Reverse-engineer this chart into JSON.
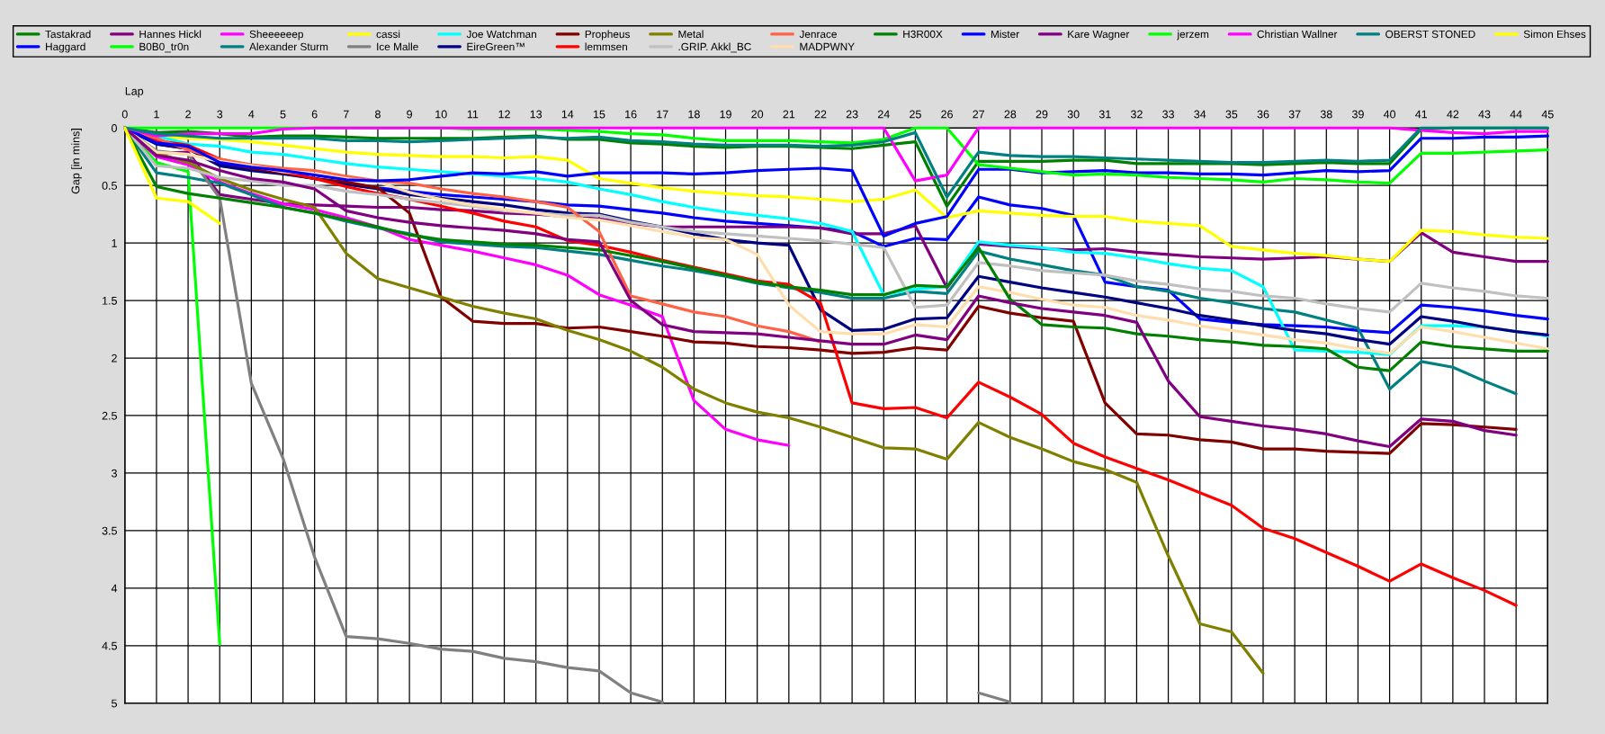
{
  "chart_data": {
    "type": "line",
    "xlabel": "Lap",
    "ylabel": "Gap [in mins]",
    "x": [
      0,
      1,
      2,
      3,
      4,
      5,
      6,
      7,
      8,
      9,
      10,
      11,
      12,
      13,
      14,
      15,
      16,
      17,
      18,
      19,
      20,
      21,
      22,
      23,
      24,
      25,
      26,
      27,
      28,
      29,
      30,
      31,
      32,
      33,
      34,
      35,
      36,
      37,
      38,
      39,
      40,
      41,
      42,
      43,
      44,
      45
    ],
    "xlim": [
      0,
      45
    ],
    "xticks": [
      0,
      1,
      2,
      3,
      4,
      5,
      6,
      7,
      8,
      9,
      10,
      11,
      12,
      13,
      14,
      15,
      16,
      17,
      18,
      19,
      20,
      21,
      22,
      23,
      24,
      25,
      26,
      27,
      28,
      29,
      30,
      31,
      32,
      33,
      34,
      35,
      36,
      37,
      38,
      39,
      40,
      41,
      42,
      43,
      44,
      45
    ],
    "ylim": [
      5,
      0
    ],
    "yticks": [
      0,
      0.5,
      1,
      1.5,
      2,
      2.5,
      3,
      3.5,
      4,
      4.5,
      5
    ],
    "grid": true,
    "legend": "top",
    "line_style": "solid",
    "series": [
      {
        "name": "Tastakrad",
        "color": "#008000",
        "values": [
          0,
          0.04,
          0.03,
          0.05,
          0.08,
          0.07,
          0.07,
          0.08,
          0.09,
          0.09,
          0.09,
          0.09,
          0.08,
          0.07,
          0.1,
          0.1,
          0.13,
          0.14,
          0.16,
          0.17,
          0.16,
          0.16,
          0.17,
          0.18,
          0.15,
          0.12,
          0.68,
          0.29,
          0.29,
          0.29,
          0.28,
          0.28,
          0.31,
          0.31,
          0.31,
          0.31,
          0.32,
          0.31,
          0.3,
          0.31,
          0.31,
          0.01,
          0,
          0,
          0,
          0
        ]
      },
      {
        "name": "Haggard",
        "color": "#0000ff",
        "values": [
          0,
          0.14,
          0.18,
          0.32,
          0.35,
          0.39,
          0.44,
          0.48,
          0.52,
          0.55,
          0.58,
          0.6,
          0.62,
          0.64,
          0.67,
          0.68,
          0.71,
          0.74,
          0.78,
          0.81,
          0.83,
          0.85,
          0.87,
          0.9,
          1.03,
          0.96,
          0.97,
          0.6,
          0.67,
          0.7,
          0.76,
          1.34,
          1.38,
          1.41,
          1.66,
          1.69,
          1.71,
          1.72,
          1.73,
          1.76,
          1.78,
          1.54,
          1.56,
          1.59,
          1.63,
          1.66
        ]
      },
      {
        "name": "Hannes Hickl",
        "color": "#800080",
        "values": [
          0,
          0.22,
          0.21,
          0.58,
          0.62,
          0.66,
          0.67,
          0.68,
          0.69,
          0.69,
          0.71,
          0.72,
          0.74,
          0.75,
          0.77,
          0.79,
          0.83,
          0.86,
          0.86,
          0.86,
          0.86,
          0.86,
          0.87,
          0.92,
          0.92,
          0.85,
          1.39,
          1.01,
          1.03,
          1.05,
          1.06,
          1.05,
          1.08,
          1.1,
          1.12,
          1.13,
          1.14,
          1.13,
          1.12,
          1.14,
          1.16,
          0.91,
          1.08,
          1.12,
          1.16,
          1.16
        ]
      },
      {
        "name": "B0B0_tr0n",
        "color": "#00ff00",
        "values": [
          0,
          0.3,
          0.38,
          4.49,
          null,
          null,
          null,
          null,
          null,
          null,
          null,
          null,
          null,
          null,
          null,
          null,
          null,
          null,
          null,
          null,
          null,
          null,
          null,
          null,
          null,
          null,
          null,
          null,
          null,
          null,
          null,
          null,
          null,
          null,
          null,
          null,
          null,
          null,
          null,
          null,
          null,
          null,
          null,
          null,
          null,
          null
        ]
      },
      {
        "name": "Sheeeeeep",
        "color": "#ff00ff",
        "values": [
          0,
          0.25,
          0.32,
          0.47,
          0.57,
          0.66,
          0.71,
          0.78,
          0.86,
          0.97,
          1.02,
          1.07,
          1.13,
          1.19,
          1.28,
          1.45,
          1.54,
          1.64,
          2.37,
          2.62,
          2.71,
          2.76,
          null,
          null,
          null,
          null,
          null,
          null,
          null,
          null,
          null,
          null,
          null,
          null,
          null,
          null,
          null,
          null,
          null,
          null,
          null,
          null,
          null,
          null,
          null,
          null
        ]
      },
      {
        "name": "Alexander Sturm",
        "color": "#008080",
        "values": [
          0,
          0.39,
          0.43,
          0.48,
          0.58,
          0.69,
          0.74,
          0.81,
          0.87,
          0.92,
          0.99,
          1.01,
          1.03,
          1.04,
          1.07,
          1.1,
          1.15,
          1.2,
          1.24,
          1.29,
          1.35,
          1.39,
          1.43,
          1.48,
          1.48,
          1.42,
          1.44,
          1.07,
          1.14,
          1.19,
          1.24,
          1.28,
          1.38,
          1.42,
          1.48,
          1.52,
          1.57,
          1.6,
          1.67,
          1.74,
          2.27,
          2.03,
          2.08,
          2.2,
          2.31,
          null
        ]
      },
      {
        "name": "cassi",
        "color": "#ffff00",
        "values": [
          0,
          0.08,
          0.09,
          0.1,
          0.12,
          0.15,
          0.18,
          0.21,
          0.23,
          0.24,
          0.25,
          0.25,
          0.26,
          0.25,
          0.28,
          0.44,
          0.48,
          0.52,
          0.55,
          0.57,
          0.59,
          0.6,
          0.62,
          0.64,
          0.62,
          0.54,
          0.78,
          0.72,
          0.74,
          0.76,
          0.77,
          0.77,
          0.81,
          0.83,
          0.85,
          1.03,
          1.06,
          1.09,
          1.11,
          1.14,
          1.16,
          0.89,
          0.9,
          0.93,
          0.95,
          0.96
        ]
      },
      {
        "name": "Ice Malle",
        "color": "#808080",
        "values": [
          0,
          0.2,
          0.23,
          0.61,
          2.22,
          2.87,
          3.73,
          4.42,
          4.44,
          4.48,
          4.53,
          4.55,
          4.61,
          4.64,
          4.69,
          4.72,
          4.91,
          4.99,
          null,
          null,
          null,
          null,
          null,
          null,
          null,
          null,
          null,
          4.91,
          4.99,
          null,
          null,
          null,
          null,
          null,
          null,
          null,
          null,
          null,
          null,
          null,
          null,
          null,
          null,
          null,
          null,
          null
        ]
      },
      {
        "name": "Joe Watchman",
        "color": "#00ffff",
        "values": [
          0,
          0.07,
          0.14,
          0.16,
          0.21,
          0.23,
          0.27,
          0.31,
          0.34,
          0.36,
          0.38,
          0.4,
          0.42,
          0.44,
          0.47,
          0.53,
          0.58,
          0.64,
          0.69,
          0.73,
          0.76,
          0.79,
          0.83,
          0.9,
          1.45,
          1.4,
          1.38,
          0.99,
          1.02,
          1.04,
          1.08,
          1.09,
          1.13,
          1.18,
          1.22,
          1.24,
          1.38,
          1.93,
          1.94,
          1.95,
          1.97,
          1.72,
          1.72,
          1.73,
          1.77,
          1.81
        ]
      },
      {
        "name": "EireGreen™",
        "color": "#000080",
        "values": [
          0,
          0.14,
          0.18,
          0.33,
          0.37,
          0.4,
          0.44,
          0.49,
          0.53,
          0.58,
          0.61,
          0.64,
          0.67,
          0.71,
          0.74,
          0.75,
          0.81,
          0.86,
          0.92,
          0.97,
          1.0,
          1.02,
          1.58,
          1.76,
          1.75,
          1.66,
          1.65,
          1.29,
          1.34,
          1.39,
          1.43,
          1.47,
          1.52,
          1.57,
          1.63,
          1.67,
          1.72,
          1.76,
          1.79,
          1.84,
          1.88,
          1.64,
          1.68,
          1.73,
          1.77,
          1.8
        ]
      },
      {
        "name": "Propheus",
        "color": "#800000",
        "values": [
          0,
          0.12,
          0.18,
          0.3,
          0.35,
          0.39,
          0.44,
          0.47,
          0.52,
          0.74,
          1.47,
          1.68,
          1.7,
          1.7,
          1.74,
          1.73,
          1.77,
          1.81,
          1.86,
          1.87,
          1.9,
          1.91,
          1.93,
          1.96,
          1.95,
          1.91,
          1.93,
          1.55,
          1.61,
          1.65,
          1.68,
          2.39,
          2.66,
          2.67,
          2.71,
          2.73,
          2.79,
          2.79,
          2.81,
          2.82,
          2.83,
          2.57,
          2.58,
          2.6,
          2.62,
          null
        ]
      },
      {
        "name": "lemmsen",
        "color": "#ff0000",
        "values": [
          0,
          0.11,
          0.15,
          0.27,
          0.33,
          0.38,
          0.44,
          0.51,
          0.57,
          0.62,
          0.68,
          0.74,
          0.81,
          0.86,
          0.98,
          1.02,
          1.08,
          1.15,
          1.21,
          1.27,
          1.33,
          1.36,
          1.52,
          2.39,
          2.44,
          2.43,
          2.52,
          2.21,
          2.34,
          2.49,
          2.74,
          2.86,
          2.96,
          3.06,
          3.17,
          3.28,
          3.48,
          3.57,
          3.69,
          3.81,
          3.94,
          3.79,
          3.91,
          4.02,
          4.15,
          null
        ]
      },
      {
        "name": "Metal",
        "color": "#808000",
        "values": [
          0,
          0.22,
          0.3,
          0.44,
          0.54,
          0.62,
          0.69,
          1.09,
          1.31,
          1.39,
          1.47,
          1.55,
          1.61,
          1.66,
          1.76,
          1.84,
          1.94,
          2.08,
          2.27,
          2.39,
          2.47,
          2.52,
          2.6,
          2.69,
          2.78,
          2.79,
          2.88,
          2.56,
          2.69,
          2.79,
          2.9,
          2.97,
          3.08,
          3.72,
          4.31,
          4.38,
          4.74,
          null,
          null,
          null,
          null,
          null,
          null,
          null,
          null,
          null
        ]
      },
      {
        "name": ".GRIP. Akkl_BC",
        "color": "#c0c0c0",
        "values": [
          0,
          0.33,
          0.35,
          0.43,
          0.46,
          0.5,
          0.5,
          0.55,
          0.58,
          0.62,
          0.65,
          0.68,
          0.72,
          0.74,
          0.76,
          0.76,
          0.82,
          0.86,
          0.9,
          0.92,
          0.94,
          0.96,
          0.98,
          1.01,
          1.04,
          1.56,
          1.54,
          1.17,
          1.2,
          1.24,
          1.26,
          1.28,
          1.33,
          1.36,
          1.4,
          1.42,
          1.46,
          1.48,
          1.53,
          1.57,
          1.6,
          1.35,
          1.39,
          1.42,
          1.46,
          1.48
        ]
      },
      {
        "name": "Jenrace",
        "color": "#ff6347",
        "values": [
          0,
          0.09,
          0.19,
          0.27,
          0.32,
          0.35,
          0.37,
          0.42,
          0.46,
          0.48,
          0.53,
          0.57,
          0.6,
          0.64,
          0.69,
          0.9,
          1.46,
          1.53,
          1.6,
          1.64,
          1.72,
          1.77,
          1.86,
          null,
          null,
          null,
          null,
          null,
          null,
          null,
          null,
          null,
          null,
          null,
          null,
          null,
          null,
          null,
          null,
          null,
          null,
          null,
          null,
          null,
          null,
          null
        ]
      },
      {
        "name": "MADPWNY",
        "color": "#ffdead",
        "values": [
          0,
          0.21,
          0.23,
          0.29,
          0.33,
          0.38,
          0.4,
          0.44,
          0.47,
          0.56,
          0.62,
          0.67,
          0.71,
          0.74,
          0.78,
          0.8,
          0.85,
          0.9,
          0.95,
          0.97,
          1.1,
          1.54,
          1.77,
          1.79,
          1.79,
          1.71,
          1.73,
          1.38,
          1.43,
          1.49,
          1.54,
          1.56,
          1.63,
          1.67,
          1.72,
          1.76,
          1.8,
          1.84,
          1.87,
          1.92,
          1.96,
          1.73,
          1.77,
          1.82,
          1.87,
          1.92
        ]
      },
      {
        "name": "H3R00X",
        "color": "#008000",
        "values": [
          0,
          0.51,
          0.57,
          0.61,
          0.65,
          0.69,
          0.74,
          0.8,
          0.86,
          0.93,
          0.97,
          0.99,
          1.01,
          1.02,
          1.04,
          1.06,
          1.11,
          1.16,
          1.22,
          1.28,
          1.34,
          1.38,
          1.41,
          1.45,
          1.45,
          1.37,
          1.38,
          1.04,
          1.49,
          1.71,
          1.73,
          1.74,
          1.79,
          1.81,
          1.84,
          1.86,
          1.89,
          1.9,
          1.92,
          2.08,
          2.11,
          1.86,
          1.9,
          1.92,
          1.94,
          1.94
        ]
      },
      {
        "name": "Mister",
        "color": "#0000ff",
        "values": [
          0,
          0.13,
          0.16,
          0.3,
          0.34,
          0.37,
          0.41,
          0.45,
          0.46,
          0.45,
          0.42,
          0.39,
          0.4,
          0.38,
          0.42,
          0.39,
          0.39,
          0.39,
          0.4,
          0.39,
          0.37,
          0.36,
          0.35,
          0.37,
          0.94,
          0.83,
          0.77,
          0.36,
          0.36,
          0.39,
          0.38,
          0.37,
          0.39,
          0.39,
          0.4,
          0.4,
          0.41,
          0.39,
          0.37,
          0.38,
          0.37,
          0.09,
          0.09,
          0.08,
          0.08,
          0.07
        ]
      },
      {
        "name": "Kare Wagner",
        "color": "#800080",
        "values": [
          0,
          0.24,
          0.28,
          0.37,
          0.44,
          0.47,
          0.53,
          0.72,
          0.78,
          0.82,
          0.85,
          0.87,
          0.89,
          0.92,
          0.97,
          0.99,
          1.5,
          1.71,
          1.77,
          1.78,
          1.79,
          1.82,
          1.85,
          1.88,
          1.88,
          1.8,
          1.84,
          1.46,
          1.52,
          1.57,
          1.6,
          1.63,
          1.69,
          2.2,
          2.51,
          2.55,
          2.59,
          2.62,
          2.66,
          2.72,
          2.77,
          2.53,
          2.55,
          2.63,
          2.67,
          null
        ]
      },
      {
        "name": "jerzem",
        "color": "#00ff00",
        "values": [
          0,
          0,
          0,
          0,
          0,
          0,
          0,
          0,
          0,
          0,
          0,
          0.01,
          0.01,
          0.01,
          0.02,
          0.03,
          0.05,
          0.06,
          0.09,
          0.11,
          0.11,
          0.11,
          0.12,
          0.13,
          0.1,
          0,
          0,
          0.32,
          0.35,
          0.38,
          0.41,
          0.4,
          0.41,
          0.43,
          0.44,
          0.45,
          0.47,
          0.44,
          0.45,
          0.47,
          0.48,
          0.22,
          0.22,
          0.21,
          0.2,
          0.19
        ]
      },
      {
        "name": "Christian Wallner",
        "color": "#ff00ff",
        "values": [
          0,
          0.07,
          0.05,
          0.05,
          0.05,
          0.01,
          0,
          0,
          0,
          0,
          0,
          0,
          0,
          0,
          0,
          0,
          0,
          0,
          0,
          0,
          0,
          0,
          0,
          0,
          0,
          0.46,
          0.41,
          0,
          0,
          0,
          0,
          0,
          0,
          0,
          0,
          0,
          0,
          0,
          0,
          0,
          0,
          0.02,
          0.04,
          0.05,
          0.03,
          0.03
        ]
      },
      {
        "name": "OBERST STONED",
        "color": "#008080",
        "values": [
          0,
          0.05,
          0.07,
          0.09,
          0.09,
          0.09,
          0.09,
          0.11,
          0.11,
          0.12,
          0.11,
          0.1,
          0.09,
          0.08,
          0.09,
          0.08,
          0.11,
          0.12,
          0.14,
          0.15,
          0.15,
          0.15,
          0.16,
          0.15,
          0.12,
          0.04,
          0.6,
          0.21,
          0.24,
          0.25,
          0.25,
          0.26,
          0.27,
          0.28,
          0.29,
          0.3,
          0.3,
          0.29,
          0.28,
          0.29,
          0.28,
          0,
          0,
          0,
          0,
          0
        ]
      },
      {
        "name": "Simon Ehses",
        "color": "#ffff00",
        "values": [
          0,
          0.61,
          0.64,
          0.83,
          null,
          null,
          null,
          null,
          null,
          null,
          null,
          null,
          null,
          null,
          null,
          null,
          null,
          null,
          null,
          null,
          null,
          null,
          null,
          null,
          null,
          null,
          null,
          null,
          null,
          null,
          null,
          null,
          null,
          null,
          null,
          null,
          null,
          null,
          null,
          null,
          null,
          null,
          null,
          null,
          null,
          null
        ]
      }
    ]
  }
}
